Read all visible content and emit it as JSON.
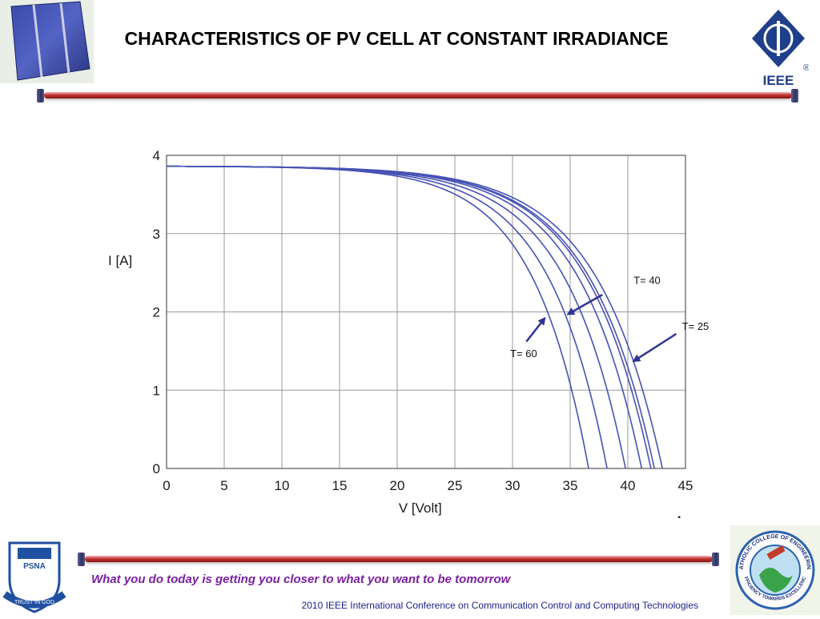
{
  "slide": {
    "title": "CHARACTERISTICS OF PV CELL AT CONSTANT IRRADIANCE",
    "tagline": "What you do today is getting you closer to what you want to be tomorrow",
    "footer": "2010 IEEE International Conference on Communication Control and Computing Technologies",
    "logos": {
      "ieee_text": "IEEE",
      "ieee_reg": "®",
      "psna_text": "PSNA",
      "psna_motto": "TRUST IN GOD",
      "catholic_ring": "CATHOLIC COLLEGE OF ENGINEERING",
      "catholic_motto": "EFFICIENCY TOWARDS EXCELLENCE"
    },
    "colors": {
      "accent_bar": "#c33535",
      "curve": "#4652b4",
      "arrow": "#2e3594",
      "tagline": "#7a1fa2",
      "footer": "#1a1f8a"
    }
  },
  "chart_data": {
    "type": "line",
    "xlabel": "V [Volt]",
    "ylabel": "I [A]",
    "xlim": [
      0,
      45
    ],
    "ylim": [
      0,
      4
    ],
    "xticks": [
      0,
      5,
      10,
      15,
      20,
      25,
      30,
      35,
      40,
      45
    ],
    "yticks": [
      0,
      1,
      2,
      3,
      4
    ],
    "grid": true,
    "series": [
      {
        "isc": 3.86,
        "voc": 36.6
      },
      {
        "isc": 3.86,
        "voc": 38.2
      },
      {
        "isc": 3.86,
        "voc": 39.8
      },
      {
        "isc": 3.86,
        "voc": 41.2
      },
      {
        "isc": 3.86,
        "voc": 42.0
      },
      {
        "isc": 3.86,
        "voc": 42.3
      },
      {
        "isc": 3.86,
        "voc": 43.0
      }
    ],
    "annotations": [
      {
        "text": "T= 40",
        "arrow_from": [
          37.8,
          2.22
        ],
        "arrow_to": [
          34.8,
          1.97
        ]
      },
      {
        "text": "T= 25",
        "arrow_from": [
          44.2,
          1.72
        ],
        "arrow_to": [
          40.5,
          1.37
        ]
      },
      {
        "text": "T= 60",
        "arrow_from": [
          31.2,
          1.62
        ],
        "arrow_to": [
          32.8,
          1.92
        ]
      }
    ],
    "stray_mark": "."
  }
}
